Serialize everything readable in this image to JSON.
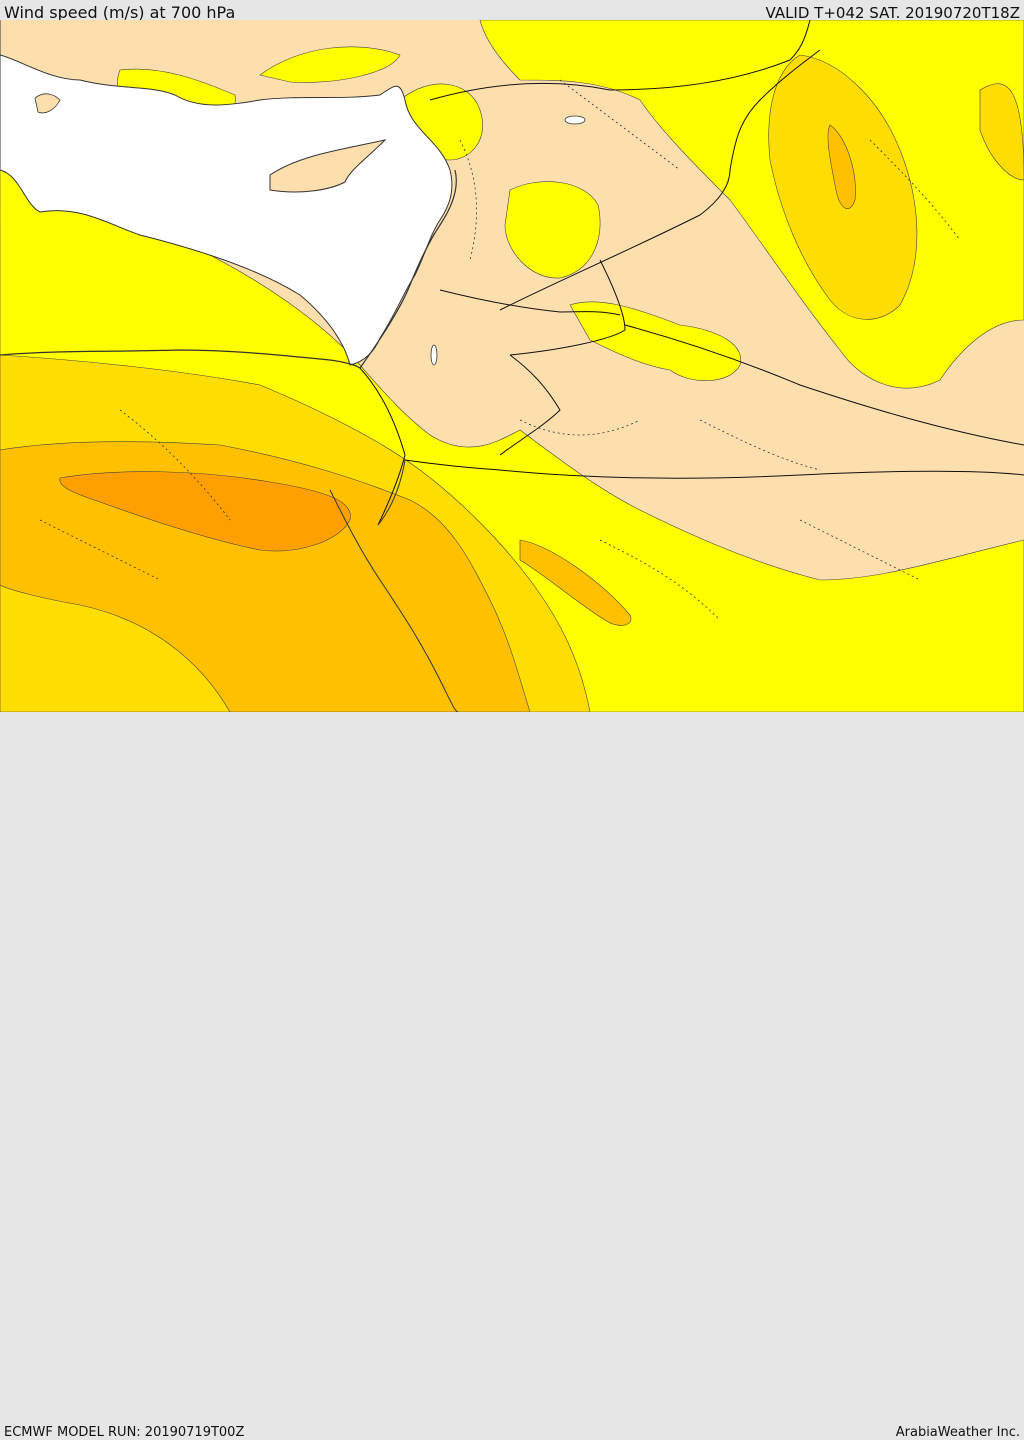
{
  "header": {
    "title": "Wind speed (m/s) at 700 hPa",
    "valid_time": "VALID T+042 SAT. 20190720T18Z"
  },
  "footer": {
    "model_run": "ECMWF MODEL RUN: 20190719T00Z",
    "credit": "ArabiaWeather Inc."
  },
  "map": {
    "variable": "Wind speed",
    "units": "m/s",
    "pressure_level": "700 hPa",
    "colors": {
      "sea": "#ffffff",
      "band_calm": "#fddfae",
      "band_2": "#ffff00",
      "band_3": "#ffdd00",
      "band_4": "#ffc000",
      "band_5": "#ffa000",
      "coastline": "#333333",
      "borders": "#111111"
    }
  }
}
